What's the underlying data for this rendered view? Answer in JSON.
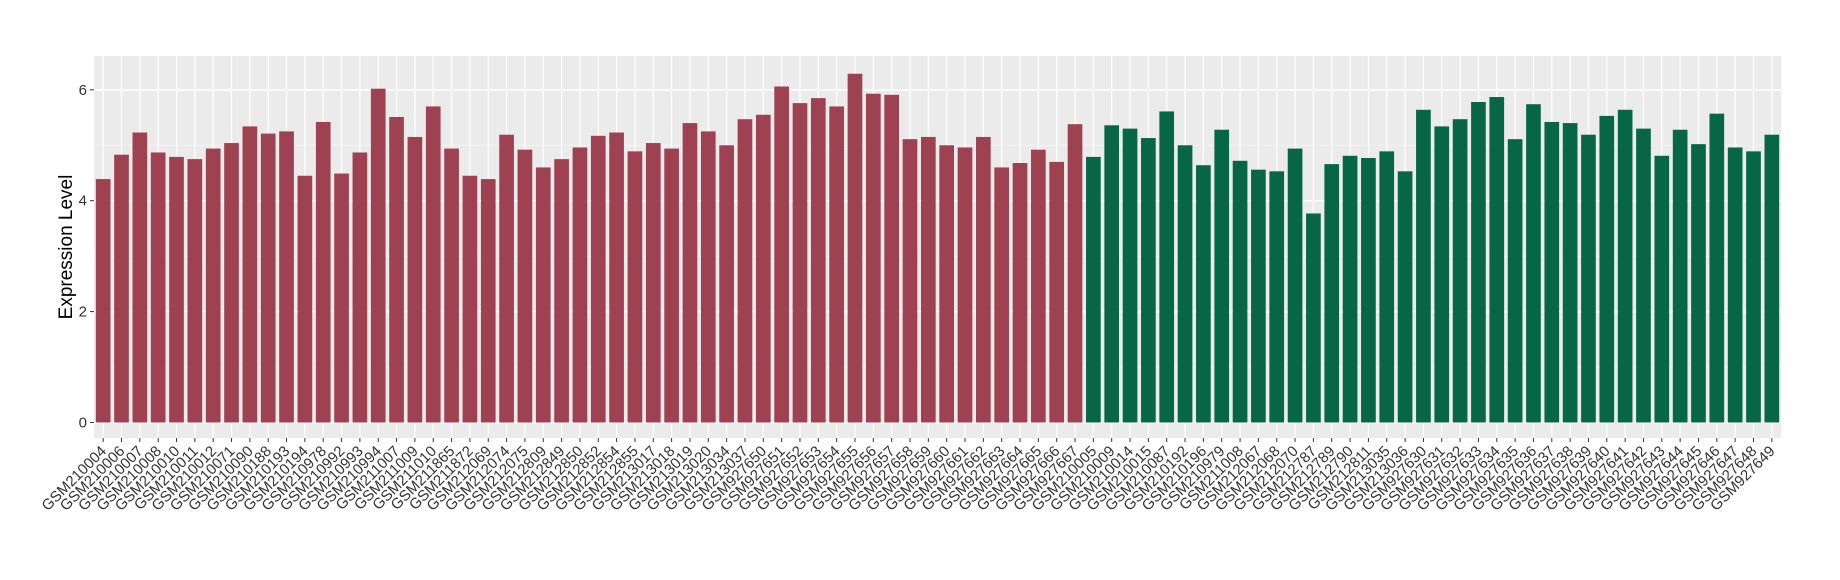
{
  "chart_data": {
    "type": "bar",
    "y_label": "Expression Level",
    "categories": [
      "GSM210004",
      "GSM210006",
      "GSM210007",
      "GSM210008",
      "GSM210010",
      "GSM210011",
      "GSM210012",
      "GSM210071",
      "GSM210090",
      "GSM210188",
      "GSM210193",
      "GSM210194",
      "GSM210978",
      "GSM210992",
      "GSM210993",
      "GSM210994",
      "GSM211007",
      "GSM211009",
      "GSM211010",
      "GSM211865",
      "GSM211872",
      "GSM212069",
      "GSM212074",
      "GSM212075",
      "GSM212809",
      "GSM212849",
      "GSM212850",
      "GSM212852",
      "GSM212854",
      "GSM212855",
      "GSM213017",
      "GSM213018",
      "GSM213019",
      "GSM213020",
      "GSM213034",
      "GSM213037",
      "GSM927650",
      "GSM927651",
      "GSM927652",
      "GSM927653",
      "GSM927654",
      "GSM927655",
      "GSM927656",
      "GSM927657",
      "GSM927658",
      "GSM927659",
      "GSM927660",
      "GSM927661",
      "GSM927662",
      "GSM927663",
      "GSM927664",
      "GSM927665",
      "GSM927666",
      "GSM927667",
      "GSM210005",
      "GSM210009",
      "GSM210014",
      "GSM210015",
      "GSM210087",
      "GSM210192",
      "GSM210196",
      "GSM210979",
      "GSM211008",
      "GSM212067",
      "GSM212068",
      "GSM212070",
      "GSM212787",
      "GSM212789",
      "GSM212790",
      "GSM212811",
      "GSM213035",
      "GSM213036",
      "GSM927630",
      "GSM927631",
      "GSM927632",
      "GSM927633",
      "GSM927634",
      "GSM927635",
      "GSM927636",
      "GSM927637",
      "GSM927638",
      "GSM927639",
      "GSM927640",
      "GSM927641",
      "GSM927642",
      "GSM927643",
      "GSM927644",
      "GSM927645",
      "GSM927646",
      "GSM927647",
      "GSM927648",
      "GSM927649"
    ],
    "series": [
      {
        "color": "#9e4150",
        "values": [
          4.39,
          4.83,
          5.23,
          4.87,
          4.79,
          4.75,
          4.94,
          5.04,
          5.34,
          5.21,
          5.25,
          4.45,
          5.42,
          4.49,
          4.87,
          6.02,
          5.51,
          5.15,
          5.7,
          4.94,
          4.45,
          4.39,
          5.19,
          4.92,
          4.6,
          4.75,
          4.96,
          5.17,
          5.23,
          4.89,
          5.04,
          4.94,
          5.4,
          5.25,
          5.0,
          5.47,
          5.55,
          6.06,
          5.76,
          5.85,
          5.7,
          6.29,
          5.93,
          5.91,
          5.11,
          5.15,
          5.0,
          4.96,
          5.15,
          4.6,
          4.68,
          4.92,
          4.7,
          5.38,
          null,
          null,
          null,
          null,
          null,
          null,
          null,
          null,
          null,
          null,
          null,
          null,
          null,
          null,
          null,
          null,
          null,
          null,
          null,
          null,
          null,
          null,
          null,
          null,
          null,
          null,
          null,
          null,
          null,
          null,
          null,
          null,
          null,
          null,
          null,
          null,
          null,
          null
        ]
      },
      {
        "color": "#076645",
        "values": [
          null,
          null,
          null,
          null,
          null,
          null,
          null,
          null,
          null,
          null,
          null,
          null,
          null,
          null,
          null,
          null,
          null,
          null,
          null,
          null,
          null,
          null,
          null,
          null,
          null,
          null,
          null,
          null,
          null,
          null,
          null,
          null,
          null,
          null,
          null,
          null,
          null,
          null,
          null,
          null,
          null,
          null,
          null,
          null,
          null,
          null,
          null,
          null,
          null,
          null,
          null,
          null,
          null,
          null,
          4.79,
          5.36,
          5.3,
          5.13,
          5.61,
          5.0,
          4.64,
          5.28,
          4.72,
          4.56,
          4.53,
          4.94,
          3.77,
          4.66,
          4.81,
          4.77,
          4.89,
          4.53,
          5.64,
          5.34,
          5.47,
          5.78,
          5.87,
          5.11,
          5.74,
          5.42,
          5.4,
          5.19,
          5.53,
          5.64,
          5.3,
          4.81,
          5.28,
          5.02,
          5.57,
          4.96,
          4.89,
          5.19
        ]
      }
    ],
    "ylim": [
      -0.28,
      6.61
    ],
    "yticks": [
      0,
      2,
      4,
      6
    ],
    "grid": true
  }
}
